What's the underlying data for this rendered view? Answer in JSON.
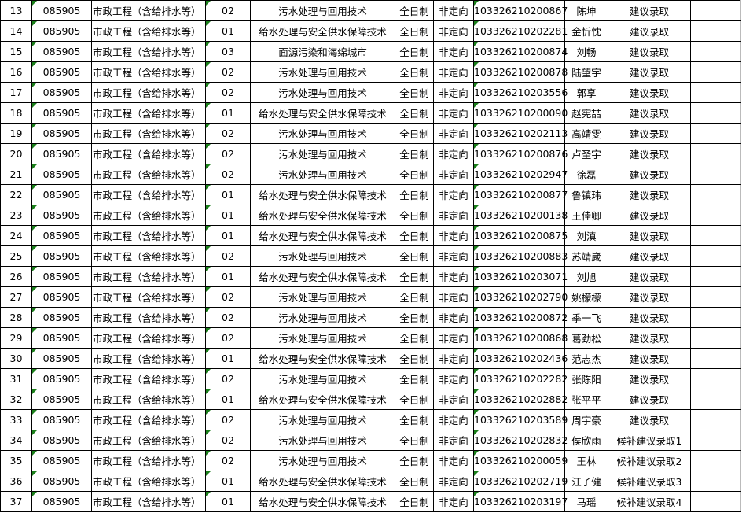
{
  "table": {
    "rows": [
      [
        "13",
        "085905",
        "市政工程（含给排水等）",
        "02",
        "污水处理与回用技术",
        "全日制",
        "非定向",
        "103326210200867",
        "陈坤",
        "建议录取"
      ],
      [
        "14",
        "085905",
        "市政工程（含给排水等）",
        "01",
        "给水处理与安全供水保障技术",
        "全日制",
        "非定向",
        "103326210202281",
        "金忻忱",
        "建议录取"
      ],
      [
        "15",
        "085905",
        "市政工程（含给排水等）",
        "03",
        "面源污染和海绵城市",
        "全日制",
        "非定向",
        "103326210200874",
        "刘畅",
        "建议录取"
      ],
      [
        "16",
        "085905",
        "市政工程（含给排水等）",
        "02",
        "污水处理与回用技术",
        "全日制",
        "非定向",
        "103326210200878",
        "陆望宇",
        "建议录取"
      ],
      [
        "17",
        "085905",
        "市政工程（含给排水等）",
        "02",
        "污水处理与回用技术",
        "全日制",
        "非定向",
        "103326210203556",
        "郭享",
        "建议录取"
      ],
      [
        "18",
        "085905",
        "市政工程（含给排水等）",
        "01",
        "给水处理与安全供水保障技术",
        "全日制",
        "非定向",
        "103326210200090",
        "赵宪喆",
        "建议录取"
      ],
      [
        "19",
        "085905",
        "市政工程（含给排水等）",
        "02",
        "污水处理与回用技术",
        "全日制",
        "非定向",
        "103326210202113",
        "高靖雯",
        "建议录取"
      ],
      [
        "20",
        "085905",
        "市政工程（含给排水等）",
        "02",
        "污水处理与回用技术",
        "全日制",
        "非定向",
        "103326210200876",
        "卢圣宇",
        "建议录取"
      ],
      [
        "21",
        "085905",
        "市政工程（含给排水等）",
        "02",
        "污水处理与回用技术",
        "全日制",
        "非定向",
        "103326210202947",
        "徐磊",
        "建议录取"
      ],
      [
        "22",
        "085905",
        "市政工程（含给排水等）",
        "01",
        "给水处理与安全供水保障技术",
        "全日制",
        "非定向",
        "103326210200877",
        "鲁镇玮",
        "建议录取"
      ],
      [
        "23",
        "085905",
        "市政工程（含给排水等）",
        "01",
        "给水处理与安全供水保障技术",
        "全日制",
        "非定向",
        "103326210200138",
        "王佳卿",
        "建议录取"
      ],
      [
        "24",
        "085905",
        "市政工程（含给排水等）",
        "01",
        "给水处理与安全供水保障技术",
        "全日制",
        "非定向",
        "103326210200875",
        "刘滇",
        "建议录取"
      ],
      [
        "25",
        "085905",
        "市政工程（含给排水等）",
        "02",
        "污水处理与回用技术",
        "全日制",
        "非定向",
        "103326210200883",
        "苏靖崴",
        "建议录取"
      ],
      [
        "26",
        "085905",
        "市政工程（含给排水等）",
        "01",
        "给水处理与安全供水保障技术",
        "全日制",
        "非定向",
        "103326210203071",
        "刘旭",
        "建议录取"
      ],
      [
        "27",
        "085905",
        "市政工程（含给排水等）",
        "02",
        "污水处理与回用技术",
        "全日制",
        "非定向",
        "103326210202790",
        "姚檬檬",
        "建议录取"
      ],
      [
        "28",
        "085905",
        "市政工程（含给排水等）",
        "02",
        "污水处理与回用技术",
        "全日制",
        "非定向",
        "103326210200872",
        "季一飞",
        "建议录取"
      ],
      [
        "29",
        "085905",
        "市政工程（含给排水等）",
        "02",
        "污水处理与回用技术",
        "全日制",
        "非定向",
        "103326210200868",
        "葛劲松",
        "建议录取"
      ],
      [
        "30",
        "085905",
        "市政工程（含给排水等）",
        "01",
        "给水处理与安全供水保障技术",
        "全日制",
        "非定向",
        "103326210202436",
        "范志杰",
        "建议录取"
      ],
      [
        "31",
        "085905",
        "市政工程（含给排水等）",
        "02",
        "污水处理与回用技术",
        "全日制",
        "非定向",
        "103326210202282",
        "张陈阳",
        "建议录取"
      ],
      [
        "32",
        "085905",
        "市政工程（含给排水等）",
        "01",
        "给水处理与安全供水保障技术",
        "全日制",
        "非定向",
        "103326210202882",
        "张平平",
        "建议录取"
      ],
      [
        "33",
        "085905",
        "市政工程（含给排水等）",
        "02",
        "污水处理与回用技术",
        "全日制",
        "非定向",
        "103326210203589",
        "周宇豪",
        "建议录取"
      ],
      [
        "34",
        "085905",
        "市政工程（含给排水等）",
        "02",
        "污水处理与回用技术",
        "全日制",
        "非定向",
        "103326210202832",
        "侯欣雨",
        "候补建议录取1"
      ],
      [
        "35",
        "085905",
        "市政工程（含给排水等）",
        "02",
        "污水处理与回用技术",
        "全日制",
        "非定向",
        "103326210200059",
        "王林",
        "候补建议录取2"
      ],
      [
        "36",
        "085905",
        "市政工程（含给排水等）",
        "01",
        "给水处理与安全供水保障技术",
        "全日制",
        "非定向",
        "103326210202719",
        "汪子健",
        "候补建议录取3"
      ],
      [
        "37",
        "085905",
        "市政工程（含给排水等）",
        "01",
        "给水处理与安全供水保障技术",
        "全日制",
        "非定向",
        "103326210203197",
        "马瑶",
        "候补建议录取4"
      ]
    ],
    "marker_color": "#1a7f1a"
  }
}
